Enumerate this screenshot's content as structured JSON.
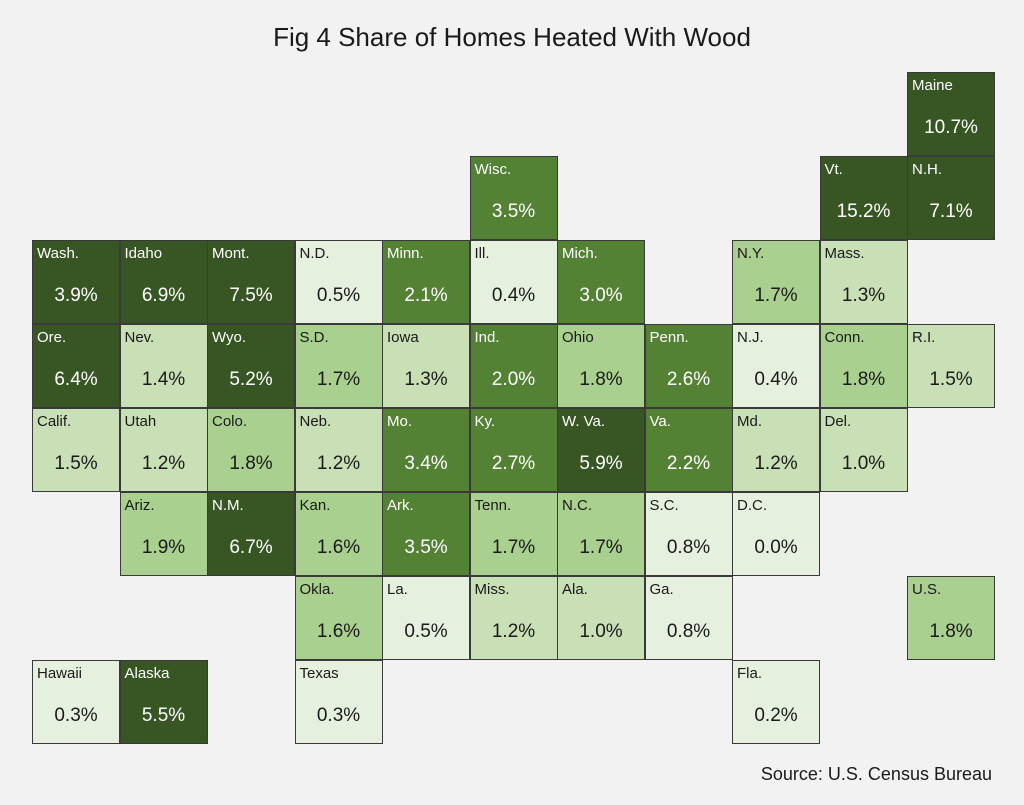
{
  "title": "Fig 4 Share of Homes Heated With Wood",
  "source": "Source: U.S. Census Bureau",
  "colors": {
    "background": "#f2f2f2",
    "scale": [
      "#e6f0df",
      "#c9e0b6",
      "#a9d08e",
      "#548235",
      "#375623"
    ]
  },
  "chart_data": {
    "type": "heatmap",
    "title": "Fig 4 Share of Homes Heated With Wood",
    "unit": "%",
    "cells": [
      {
        "label": "Maine",
        "value": 10.7,
        "display": "10.7%",
        "row": 0,
        "col": 10
      },
      {
        "label": "Wisc.",
        "value": 3.5,
        "display": "3.5%",
        "row": 1,
        "col": 5
      },
      {
        "label": "Vt.",
        "value": 15.2,
        "display": "15.2%",
        "row": 1,
        "col": 9
      },
      {
        "label": "N.H.",
        "value": 7.1,
        "display": "7.1%",
        "row": 1,
        "col": 10
      },
      {
        "label": "Wash.",
        "value": 3.9,
        "display": "3.9%",
        "row": 2,
        "col": 0
      },
      {
        "label": "Idaho",
        "value": 6.9,
        "display": "6.9%",
        "row": 2,
        "col": 1
      },
      {
        "label": "Mont.",
        "value": 7.5,
        "display": "7.5%",
        "row": 2,
        "col": 2
      },
      {
        "label": "N.D.",
        "value": 0.5,
        "display": "0.5%",
        "row": 2,
        "col": 3
      },
      {
        "label": "Minn.",
        "value": 2.1,
        "display": "2.1%",
        "row": 2,
        "col": 4
      },
      {
        "label": "Ill.",
        "value": 0.4,
        "display": "0.4%",
        "row": 2,
        "col": 5
      },
      {
        "label": "Mich.",
        "value": 3.0,
        "display": "3.0%",
        "row": 2,
        "col": 6
      },
      {
        "label": "N.Y.",
        "value": 1.7,
        "display": "1.7%",
        "row": 2,
        "col": 8
      },
      {
        "label": "Mass.",
        "value": 1.3,
        "display": "1.3%",
        "row": 2,
        "col": 9
      },
      {
        "label": "Ore.",
        "value": 6.4,
        "display": "6.4%",
        "row": 3,
        "col": 0
      },
      {
        "label": "Nev.",
        "value": 1.4,
        "display": "1.4%",
        "row": 3,
        "col": 1
      },
      {
        "label": "Wyo.",
        "value": 5.2,
        "display": "5.2%",
        "row": 3,
        "col": 2
      },
      {
        "label": "S.D.",
        "value": 1.7,
        "display": "1.7%",
        "row": 3,
        "col": 3
      },
      {
        "label": "Iowa",
        "value": 1.3,
        "display": "1.3%",
        "row": 3,
        "col": 4
      },
      {
        "label": "Ind.",
        "value": 2.0,
        "display": "2.0%",
        "row": 3,
        "col": 5
      },
      {
        "label": "Ohio",
        "value": 1.8,
        "display": "1.8%",
        "row": 3,
        "col": 6
      },
      {
        "label": "Penn.",
        "value": 2.6,
        "display": "2.6%",
        "row": 3,
        "col": 7
      },
      {
        "label": "N.J.",
        "value": 0.4,
        "display": "0.4%",
        "row": 3,
        "col": 8
      },
      {
        "label": "Conn.",
        "value": 1.8,
        "display": "1.8%",
        "row": 3,
        "col": 9
      },
      {
        "label": "R.I.",
        "value": 1.5,
        "display": "1.5%",
        "row": 3,
        "col": 10
      },
      {
        "label": "Calif.",
        "value": 1.5,
        "display": "1.5%",
        "row": 4,
        "col": 0
      },
      {
        "label": "Utah",
        "value": 1.2,
        "display": "1.2%",
        "row": 4,
        "col": 1
      },
      {
        "label": "Colo.",
        "value": 1.8,
        "display": "1.8%",
        "row": 4,
        "col": 2
      },
      {
        "label": "Neb.",
        "value": 1.2,
        "display": "1.2%",
        "row": 4,
        "col": 3
      },
      {
        "label": "Mo.",
        "value": 3.4,
        "display": "3.4%",
        "row": 4,
        "col": 4
      },
      {
        "label": "Ky.",
        "value": 2.7,
        "display": "2.7%",
        "row": 4,
        "col": 5
      },
      {
        "label": "W. Va.",
        "value": 5.9,
        "display": "5.9%",
        "row": 4,
        "col": 6
      },
      {
        "label": "Va.",
        "value": 2.2,
        "display": "2.2%",
        "row": 4,
        "col": 7
      },
      {
        "label": "Md.",
        "value": 1.2,
        "display": "1.2%",
        "row": 4,
        "col": 8
      },
      {
        "label": "Del.",
        "value": 1.0,
        "display": "1.0%",
        "row": 4,
        "col": 9
      },
      {
        "label": "Ariz.",
        "value": 1.9,
        "display": "1.9%",
        "row": 5,
        "col": 1
      },
      {
        "label": "N.M.",
        "value": 6.7,
        "display": "6.7%",
        "row": 5,
        "col": 2
      },
      {
        "label": "Kan.",
        "value": 1.6,
        "display": "1.6%",
        "row": 5,
        "col": 3
      },
      {
        "label": "Ark.",
        "value": 3.5,
        "display": "3.5%",
        "row": 5,
        "col": 4
      },
      {
        "label": "Tenn.",
        "value": 1.7,
        "display": "1.7%",
        "row": 5,
        "col": 5
      },
      {
        "label": "N.C.",
        "value": 1.7,
        "display": "1.7%",
        "row": 5,
        "col": 6
      },
      {
        "label": "S.C.",
        "value": 0.8,
        "display": "0.8%",
        "row": 5,
        "col": 7
      },
      {
        "label": "D.C.",
        "value": 0.0,
        "display": "0.0%",
        "row": 5,
        "col": 8
      },
      {
        "label": "Okla.",
        "value": 1.6,
        "display": "1.6%",
        "row": 6,
        "col": 3
      },
      {
        "label": "La.",
        "value": 0.5,
        "display": "0.5%",
        "row": 6,
        "col": 4
      },
      {
        "label": "Miss.",
        "value": 1.2,
        "display": "1.2%",
        "row": 6,
        "col": 5
      },
      {
        "label": "Ala.",
        "value": 1.0,
        "display": "1.0%",
        "row": 6,
        "col": 6
      },
      {
        "label": "Ga.",
        "value": 0.8,
        "display": "0.8%",
        "row": 6,
        "col": 7
      },
      {
        "label": "U.S.",
        "value": 1.8,
        "display": "1.8%",
        "row": 6,
        "col": 10
      },
      {
        "label": "Hawaii",
        "value": 0.3,
        "display": "0.3%",
        "row": 7,
        "col": 0
      },
      {
        "label": "Alaska",
        "value": 5.5,
        "display": "5.5%",
        "row": 7,
        "col": 1
      },
      {
        "label": "Texas",
        "value": 0.3,
        "display": "0.3%",
        "row": 7,
        "col": 3
      },
      {
        "label": "Fla.",
        "value": 0.2,
        "display": "0.2%",
        "row": 7,
        "col": 8
      }
    ]
  }
}
